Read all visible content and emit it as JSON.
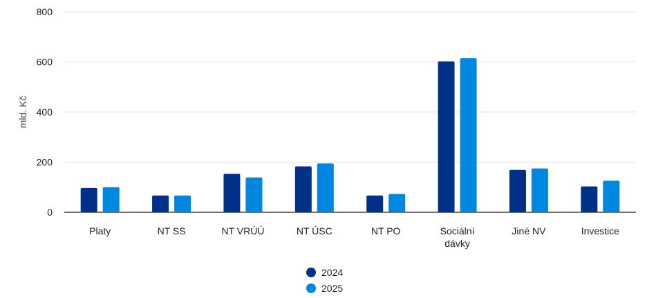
{
  "chart_data": {
    "type": "bar",
    "ylabel": "mld. Kč",
    "xlabel": "",
    "ylim": [
      0,
      800
    ],
    "yticks": [
      0,
      200,
      400,
      600,
      800
    ],
    "grid": true,
    "legend_position": "bottom",
    "categories": [
      [
        "Platy"
      ],
      [
        "NT SS"
      ],
      [
        "NT VRÚÚ"
      ],
      [
        "NT ÚSC"
      ],
      [
        "NT PO"
      ],
      [
        "Sociální",
        "dávky"
      ],
      [
        "Jiné NV"
      ],
      [
        "Investice"
      ]
    ],
    "series": [
      {
        "name": "2024",
        "color": "#003087",
        "values": [
          97,
          67,
          153,
          183,
          67,
          602,
          169,
          103
        ]
      },
      {
        "name": "2025",
        "color": "#0087e0",
        "values": [
          100,
          67,
          139,
          195,
          73,
          615,
          175,
          126
        ]
      }
    ]
  }
}
